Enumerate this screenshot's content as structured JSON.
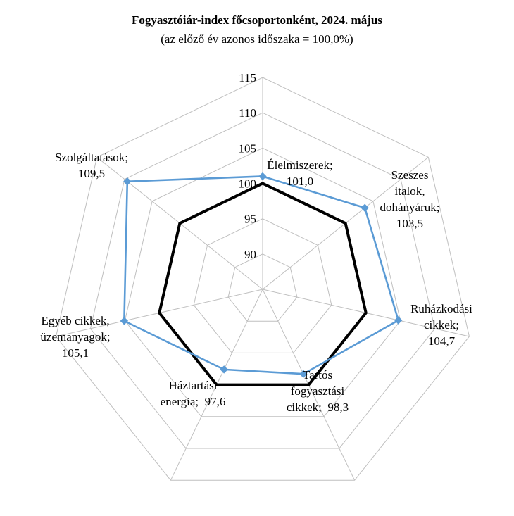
{
  "chart_data": {
    "type": "radar",
    "title": "Fogyasztóiár-index főcsoportonként, 2024. május",
    "subtitle": "(az előző év azonos időszaka = 100,0%)",
    "axis_range": [
      85,
      115
    ],
    "ticks": [
      "90",
      "95",
      "100",
      "105",
      "110",
      "115"
    ],
    "tick_values": [
      90,
      95,
      100,
      105,
      110,
      115
    ],
    "grid": true,
    "categories": [
      {
        "lines": [
          "Élelmiszerek;",
          "101,0"
        ]
      },
      {
        "lines": [
          "Szeszes",
          "italok,",
          "dohányáruk;",
          "103,5"
        ]
      },
      {
        "lines": [
          "Ruházkodási",
          "cikkek;",
          "104,7"
        ]
      },
      {
        "lines": [
          "Tartós",
          "fogyasztási",
          "cikkek;  98,3"
        ]
      },
      {
        "lines": [
          "Háztartási",
          "energia;  97,6"
        ]
      },
      {
        "lines": [
          "Egyéb cikkek,",
          "üzemanyagok;",
          "105,1"
        ]
      },
      {
        "lines": [
          "Szolgáltatások;",
          "109,5"
        ]
      }
    ],
    "series": [
      {
        "values": [
          101.0,
          103.5,
          104.7,
          98.3,
          97.6,
          105.1,
          109.5
        ],
        "color": "#5b9bd5",
        "marker": "diamond"
      },
      {
        "values": [
          100,
          100,
          100,
          100,
          100,
          100,
          100
        ],
        "color": "#000000",
        "marker": "none"
      }
    ]
  }
}
